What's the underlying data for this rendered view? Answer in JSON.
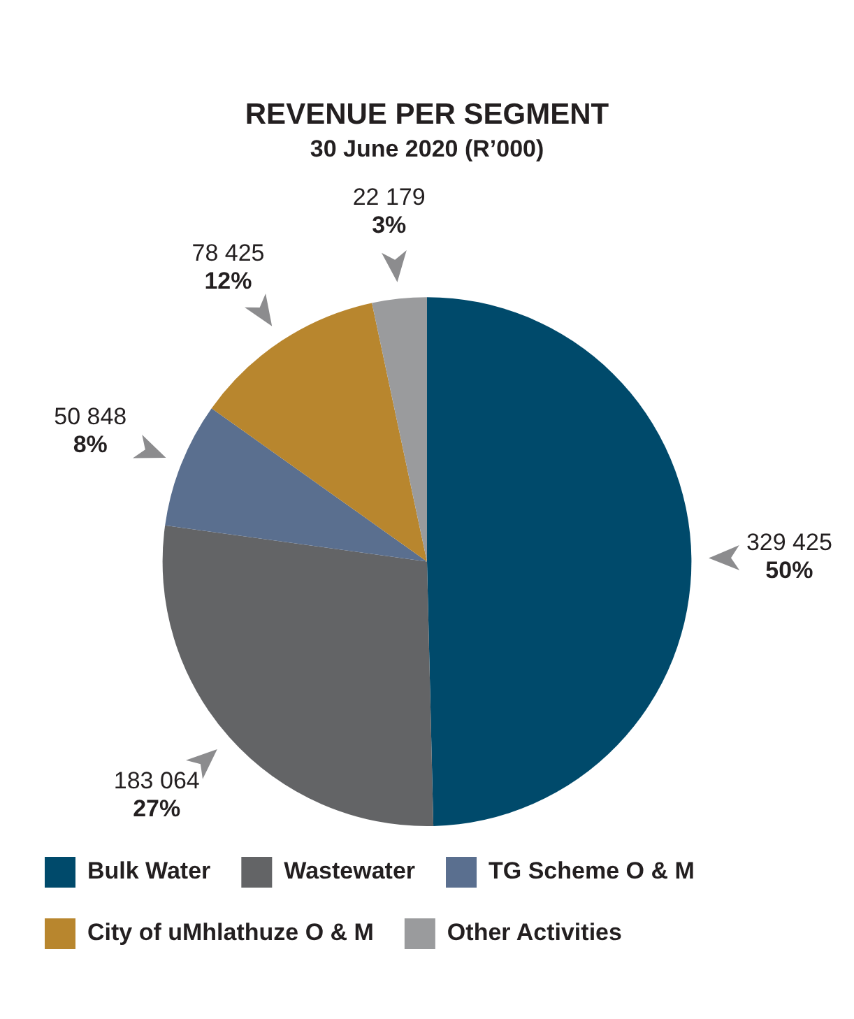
{
  "chart_data": {
    "type": "pie",
    "title": "REVENUE PER SEGMENT",
    "subtitle": "30 June 2020 (R’000)",
    "categories": [
      "Bulk Water",
      "Wastewater",
      "TG Scheme O & M",
      "City of uMhlathuze O & M",
      "Other Activities"
    ],
    "values": [
      329425,
      183064,
      50848,
      78425,
      22179
    ],
    "colors": [
      "#004a6b",
      "#636466",
      "#5a6f8f",
      "#b8862e",
      "#9a9b9d"
    ],
    "value_labels": [
      "329 425\n50%",
      "183 064\n27%",
      "50 848\n8%",
      "78 425\n12%",
      "22 179\n3%"
    ],
    "legend": "bottom"
  }
}
